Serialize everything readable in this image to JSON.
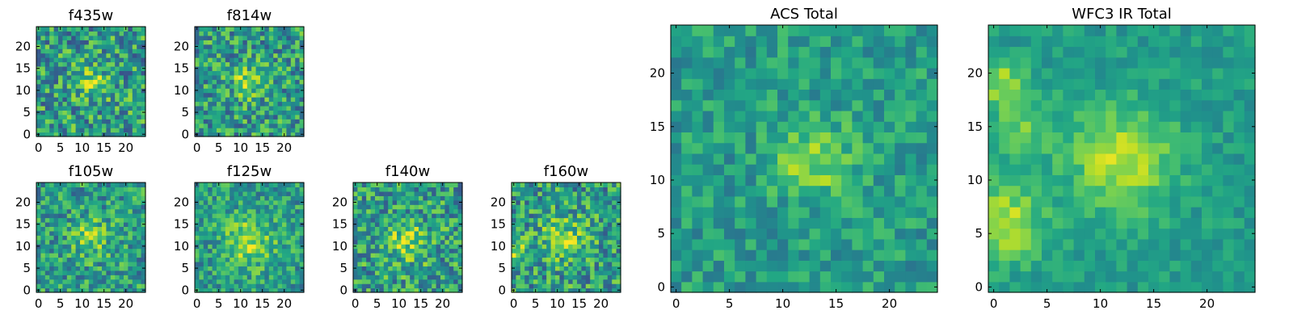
{
  "chart_data": [
    {
      "type": "heatmap",
      "title": "f435w",
      "xticks": [
        0,
        5,
        10,
        15,
        20
      ],
      "yticks": [
        0,
        5,
        10,
        15,
        20
      ],
      "xlim": [
        0,
        24
      ],
      "ylim": [
        0,
        24
      ],
      "grid_size": 25,
      "colormap": "viridis",
      "seed": 11,
      "noise": 0.3,
      "blobs": [
        {
          "x": 12,
          "y": 12,
          "sigma": 2.5,
          "amp": 0.3
        }
      ]
    },
    {
      "type": "heatmap",
      "title": "f814w",
      "xticks": [
        0,
        5,
        10,
        15,
        20
      ],
      "yticks": [
        0,
        5,
        10,
        15,
        20
      ],
      "xlim": [
        0,
        24
      ],
      "ylim": [
        0,
        24
      ],
      "grid_size": 25,
      "colormap": "viridis",
      "seed": 23,
      "noise": 0.28,
      "blobs": [
        {
          "x": 12,
          "y": 12,
          "sigma": 2.5,
          "amp": 0.3
        }
      ]
    },
    {
      "type": "heatmap",
      "title": "f105w",
      "xticks": [
        0,
        5,
        10,
        15,
        20
      ],
      "yticks": [
        0,
        5,
        10,
        15,
        20
      ],
      "xlim": [
        0,
        24
      ],
      "ylim": [
        0,
        24
      ],
      "grid_size": 25,
      "colormap": "viridis",
      "seed": 37,
      "noise": 0.25,
      "blobs": [
        {
          "x": 12,
          "y": 12,
          "sigma": 3.0,
          "amp": 0.25
        }
      ]
    },
    {
      "type": "heatmap",
      "title": "f125w",
      "xticks": [
        0,
        5,
        10,
        15,
        20
      ],
      "yticks": [
        0,
        5,
        10,
        15,
        20
      ],
      "xlim": [
        0,
        24
      ],
      "ylim": [
        0,
        24
      ],
      "grid_size": 25,
      "colormap": "viridis",
      "seed": 41,
      "noise": 0.22,
      "blobs": [
        {
          "x": 12,
          "y": 11,
          "sigma": 4.0,
          "amp": 0.3
        }
      ]
    },
    {
      "type": "heatmap",
      "title": "f140w",
      "xticks": [
        0,
        5,
        10,
        15,
        20
      ],
      "yticks": [
        0,
        5,
        10,
        15,
        20
      ],
      "xlim": [
        0,
        24
      ],
      "ylim": [
        0,
        24
      ],
      "grid_size": 25,
      "colormap": "viridis",
      "seed": 53,
      "noise": 0.28,
      "blobs": [
        {
          "x": 12,
          "y": 11,
          "sigma": 3.5,
          "amp": 0.25
        }
      ]
    },
    {
      "type": "heatmap",
      "title": "f160w",
      "xticks": [
        0,
        5,
        10,
        15,
        20
      ],
      "yticks": [
        0,
        5,
        10,
        15,
        20
      ],
      "xlim": [
        0,
        24
      ],
      "ylim": [
        0,
        24
      ],
      "grid_size": 25,
      "colormap": "viridis",
      "seed": 67,
      "noise": 0.28,
      "blobs": [
        {
          "x": 12,
          "y": 12,
          "sigma": 3.5,
          "amp": 0.25
        },
        {
          "x": 1,
          "y": 8,
          "sigma": 2.0,
          "amp": 0.25
        }
      ]
    },
    {
      "type": "heatmap",
      "title": "ACS Total",
      "xticks": [
        0,
        5,
        10,
        15,
        20
      ],
      "yticks": [
        0,
        5,
        10,
        15,
        20
      ],
      "xlim": [
        0,
        24
      ],
      "ylim": [
        0,
        24
      ],
      "grid_size": 25,
      "colormap": "viridis",
      "seed": 79,
      "noise": 0.16,
      "blobs": [
        {
          "x": 13,
          "y": 12,
          "sigma": 2.5,
          "amp": 0.3
        }
      ]
    },
    {
      "type": "heatmap",
      "title": "WFC3 IR Total",
      "xticks": [
        0,
        5,
        10,
        15,
        20
      ],
      "yticks": [
        0,
        5,
        10,
        15,
        20
      ],
      "xlim": [
        0,
        24
      ],
      "ylim": [
        0,
        24
      ],
      "grid_size": 25,
      "colormap": "viridis",
      "seed": 97,
      "noise": 0.1,
      "blobs": [
        {
          "x": 12,
          "y": 12,
          "sigma": 3.5,
          "amp": 0.35
        },
        {
          "x": 1,
          "y": 6,
          "sigma": 2.5,
          "amp": 0.35
        },
        {
          "x": 1,
          "y": 19,
          "sigma": 1.5,
          "amp": 0.3
        },
        {
          "x": 3,
          "y": 15,
          "sigma": 2.0,
          "amp": 0.2
        }
      ]
    }
  ]
}
